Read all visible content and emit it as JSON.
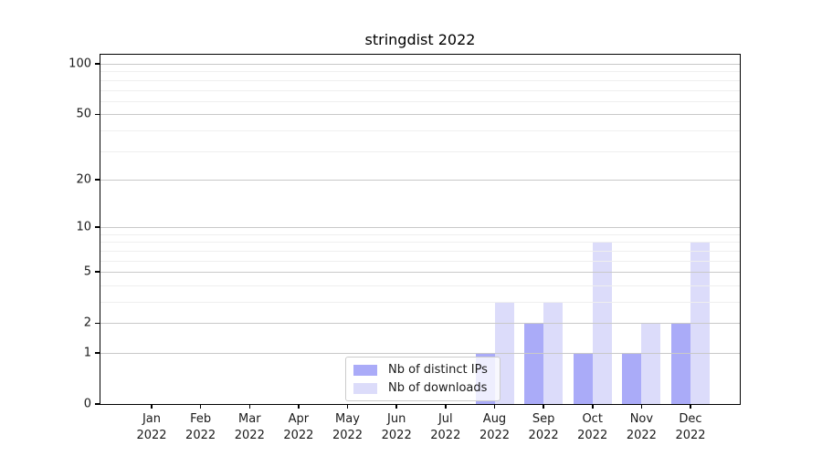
{
  "chart_data": {
    "type": "bar",
    "title": "stringdist 2022",
    "categories": [
      "Jan",
      "Feb",
      "Mar",
      "Apr",
      "May",
      "Jun",
      "Jul",
      "Aug",
      "Sep",
      "Oct",
      "Nov",
      "Dec"
    ],
    "year_line": "2022",
    "series": [
      {
        "name": "Nb of distinct IPs",
        "color": "#aaabf8",
        "values": [
          0,
          0,
          0,
          0,
          0,
          0,
          0,
          1,
          2,
          1,
          1,
          2
        ]
      },
      {
        "name": "Nb of downloads",
        "color": "#dcdcfa",
        "values": [
          0,
          0,
          0,
          0,
          0,
          0,
          0,
          3,
          3,
          8,
          2,
          8
        ]
      }
    ],
    "xlabel": "",
    "ylabel": "",
    "ylim": [
      0,
      100
    ],
    "y_scale": "log10(1+x)",
    "y_major_ticks": [
      0,
      1,
      2,
      5,
      10,
      20,
      50,
      100
    ],
    "y_minor_gridlines": [
      3,
      4,
      6,
      7,
      8,
      9,
      30,
      40,
      60,
      70,
      80,
      90
    ],
    "grid": "on",
    "legend_position": "lower center inside plot"
  },
  "colors": {
    "bar_distinct_ips": "#aaabf8",
    "bar_downloads": "#dcdcfa",
    "grid_major": "#c9c9c9",
    "grid_minor": "#efefef",
    "axis": "#000000"
  }
}
